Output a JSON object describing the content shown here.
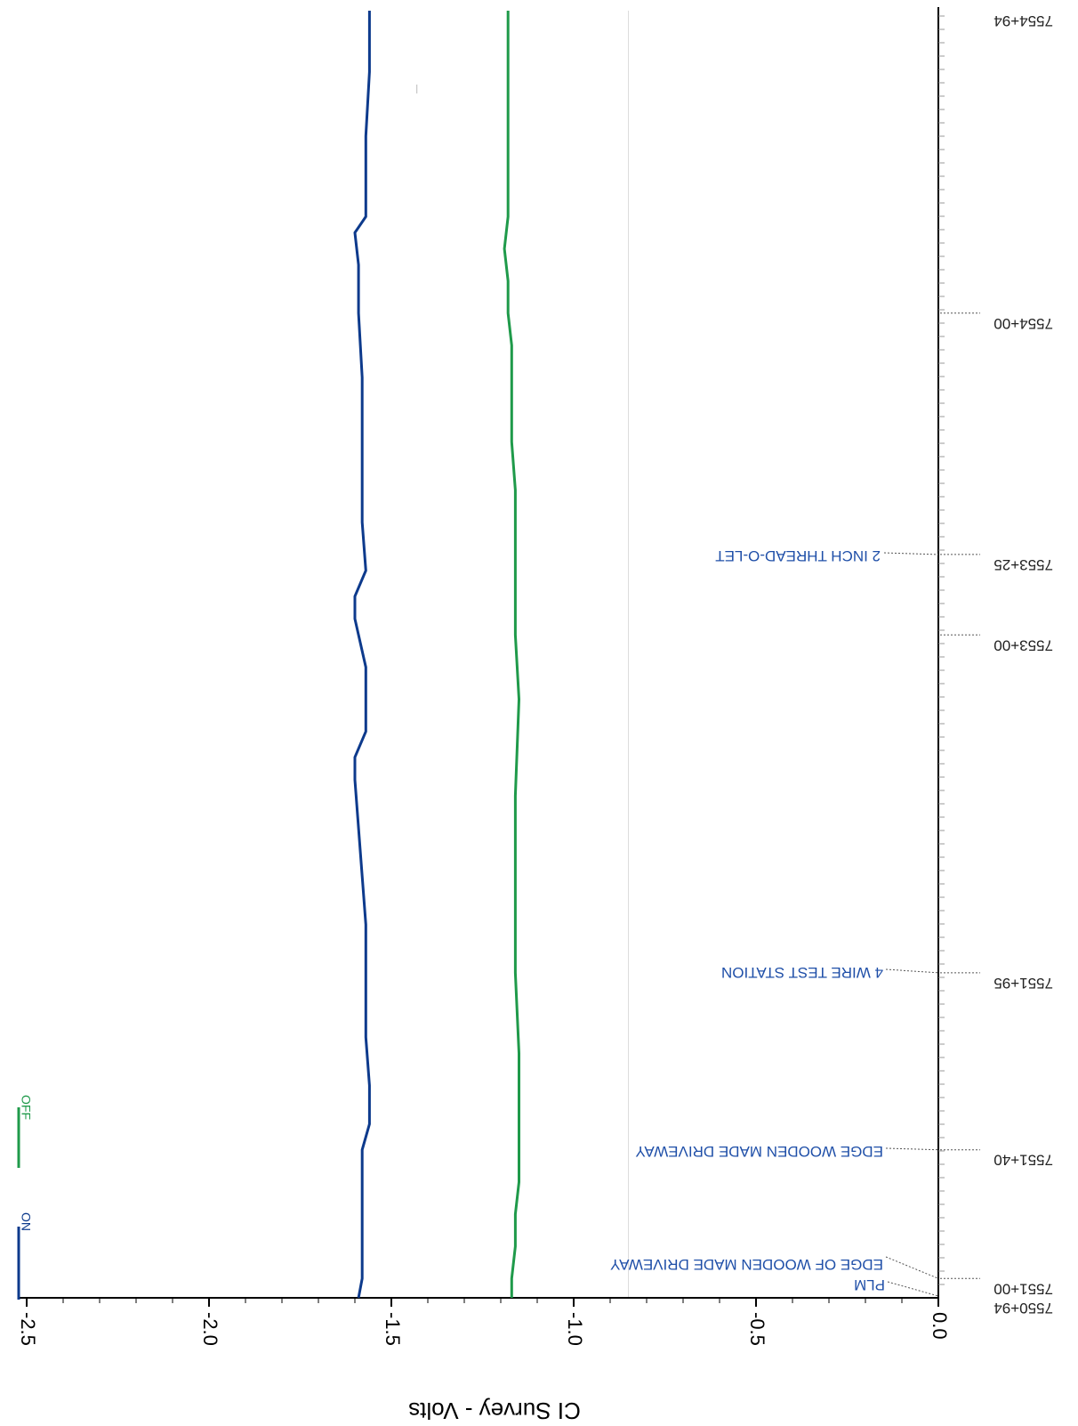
{
  "chart_data": {
    "type": "line",
    "title": "",
    "orientation": "rotated-180",
    "xlabel": "",
    "ylabel": "CI Survey - Volts",
    "ylim": [
      -2.5,
      0.0
    ],
    "yticks": [
      "-2.5",
      "-2.0",
      "-1.5",
      "-1.0",
      "-0.5",
      "0.0"
    ],
    "xlim_stationing_ft": [
      755094,
      755494
    ],
    "station_labels": [
      {
        "label": "7550+94",
        "station_ft": 755094
      },
      {
        "label": "7551+00",
        "station_ft": 755100
      },
      {
        "label": "7551+40",
        "station_ft": 755140
      },
      {
        "label": "7551+95",
        "station_ft": 755195
      },
      {
        "label": "7553+00",
        "station_ft": 755300
      },
      {
        "label": "7553+25",
        "station_ft": 755325
      },
      {
        "label": "7554+00",
        "station_ft": 755400
      },
      {
        "label": "7554+94",
        "station_ft": 755494
      }
    ],
    "annotations": [
      {
        "text": "PLM",
        "station_ft": 755094
      },
      {
        "text": "EDGE OF WOODEN MADE DRIVEWAY",
        "station_ft": 755100
      },
      {
        "text": "EDGE WOODEN MADE DRIVEWAY",
        "station_ft": 755140
      },
      {
        "text": "4 WIRE TEST STATION",
        "station_ft": 755195
      },
      {
        "text": "2 INCH THREAD-O-LET",
        "station_ft": 755325
      }
    ],
    "legend": {
      "placement": "top-left",
      "entries": [
        "ON",
        "OFF"
      ]
    },
    "series": [
      {
        "name": "ON",
        "color": "#0d3a8c",
        "x": [
          755094,
          755100,
          755110,
          755120,
          755130,
          755140,
          755148,
          755160,
          755175,
          755195,
          755210,
          755225,
          755240,
          755255,
          755262,
          755270,
          755290,
          755300,
          755305,
          755312,
          755320,
          755335,
          755350,
          755365,
          755380,
          755400,
          755415,
          755425,
          755430,
          755440,
          755455,
          755475,
          755494
        ],
        "values": [
          -1.59,
          -1.58,
          -1.58,
          -1.58,
          -1.58,
          -1.58,
          -1.56,
          -1.56,
          -1.57,
          -1.57,
          -1.57,
          -1.58,
          -1.59,
          -1.6,
          -1.6,
          -1.57,
          -1.57,
          -1.59,
          -1.6,
          -1.6,
          -1.57,
          -1.58,
          -1.58,
          -1.58,
          -1.58,
          -1.59,
          -1.59,
          -1.6,
          -1.57,
          -1.57,
          -1.57,
          -1.56,
          -1.56
        ]
      },
      {
        "name": "OFF",
        "color": "#1f9a4a",
        "x": [
          755094,
          755100,
          755110,
          755120,
          755130,
          755140,
          755150,
          755170,
          755195,
          755220,
          755250,
          755280,
          755300,
          755325,
          755345,
          755360,
          755375,
          755390,
          755400,
          755410,
          755420,
          755430,
          755450,
          755475,
          755494
        ],
        "values": [
          -1.17,
          -1.17,
          -1.16,
          -1.16,
          -1.15,
          -1.15,
          -1.15,
          -1.15,
          -1.16,
          -1.16,
          -1.16,
          -1.15,
          -1.16,
          -1.16,
          -1.16,
          -1.17,
          -1.17,
          -1.17,
          -1.18,
          -1.18,
          -1.19,
          -1.18,
          -1.18,
          -1.18,
          -1.18
        ]
      }
    ]
  }
}
